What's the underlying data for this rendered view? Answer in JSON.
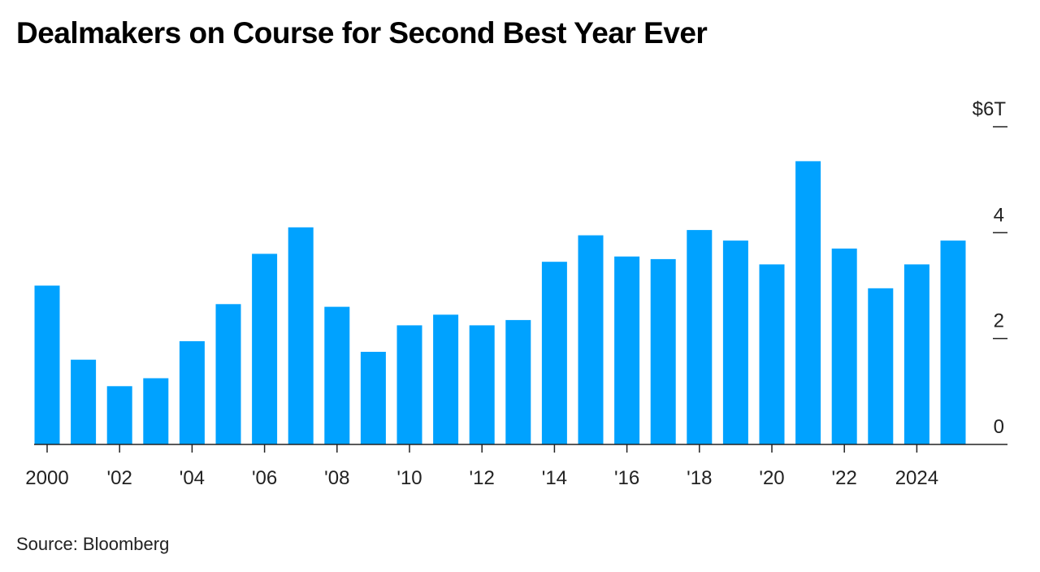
{
  "title": "Dealmakers on Course for Second Best Year Ever",
  "source": "Source: Bloomberg",
  "colors": {
    "bar": "#00a2ff",
    "axis": "#222222",
    "text": "#222222"
  },
  "chart_data": {
    "type": "bar",
    "categories": [
      "2000",
      "2001",
      "2002",
      "2003",
      "2004",
      "2005",
      "2006",
      "2007",
      "2008",
      "2009",
      "2010",
      "2011",
      "2012",
      "2013",
      "2014",
      "2015",
      "2016",
      "2017",
      "2018",
      "2019",
      "2020",
      "2021",
      "2022",
      "2023",
      "2024",
      "2025"
    ],
    "values": [
      3.0,
      1.6,
      1.1,
      1.25,
      1.95,
      2.65,
      3.6,
      4.1,
      2.6,
      1.75,
      2.25,
      2.45,
      2.25,
      2.35,
      3.45,
      3.95,
      3.55,
      3.5,
      4.05,
      3.85,
      3.4,
      5.35,
      3.7,
      2.95,
      3.4,
      3.85
    ],
    "x_tick_labels": [
      "2000",
      "'02",
      "'04",
      "'06",
      "'08",
      "'10",
      "'12",
      "'14",
      "'16",
      "'18",
      "'20",
      "'22",
      "2024"
    ],
    "x_tick_years": [
      "2000",
      "2002",
      "2004",
      "2006",
      "2008",
      "2010",
      "2012",
      "2014",
      "2016",
      "2018",
      "2020",
      "2022",
      "2024"
    ],
    "y_ticks": [
      {
        "value": 0,
        "label": "0"
      },
      {
        "value": 2,
        "label": "2"
      },
      {
        "value": 4,
        "label": "4"
      },
      {
        "value": 6,
        "label": "$6T"
      }
    ],
    "ylim": [
      0,
      6
    ],
    "y_axis_position": "right",
    "grid": false,
    "title": "Dealmakers on Course for Second Best Year Ever",
    "xlabel": "",
    "ylabel": ""
  }
}
